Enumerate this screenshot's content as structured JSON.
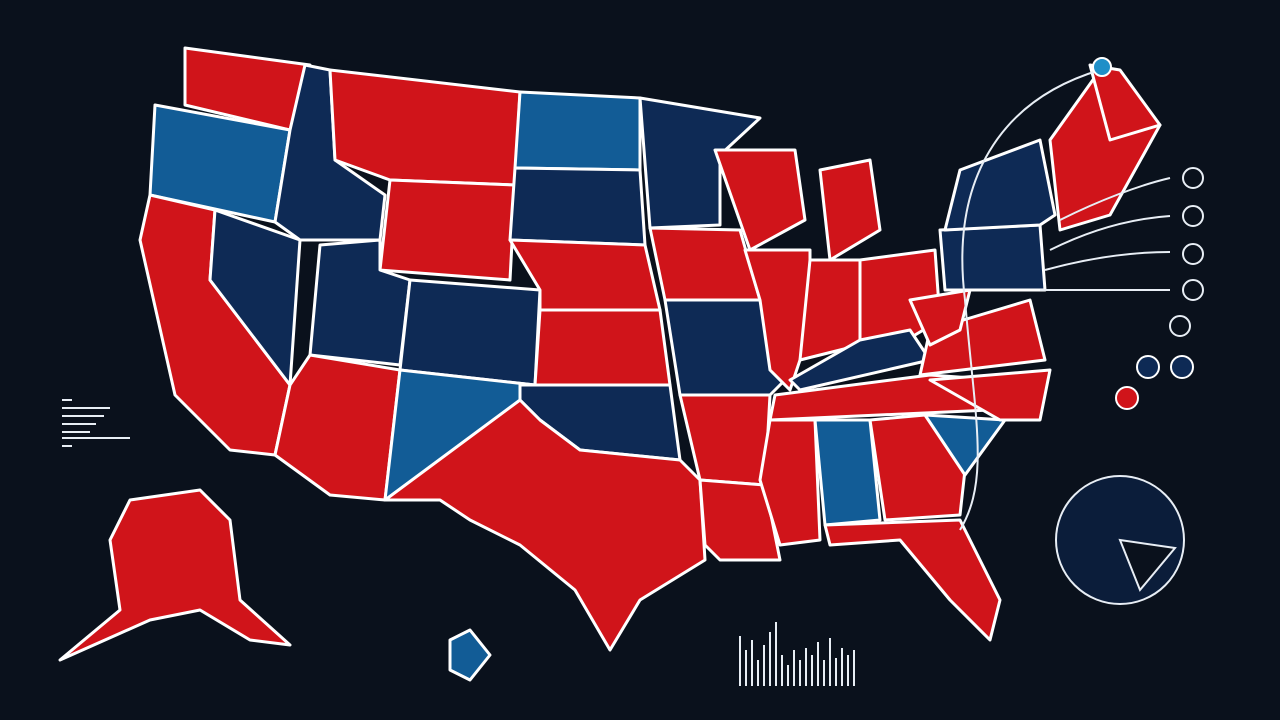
{
  "background": "#0a111c",
  "outline": "#ffffff",
  "regions": [
    "#d0141a",
    "#125c96",
    "#d0141a",
    "#0e2a55",
    "#0e2a55",
    "#d0141a",
    "#d0141a",
    "#0e2a55",
    "#0e2a55",
    "#d0141a",
    "#125c96",
    "#125c96",
    "#0e2a55",
    "#d0141a",
    "#d0141a",
    "#0e2a55",
    "#d0141a",
    "#0e2a55",
    "#d0141a",
    "#0e2a55",
    "#d0141a",
    "#d0141a",
    "#d0141a",
    "#d0141a",
    "#d0141a",
    "#d0141a",
    "#d0141a",
    "#0e2a55",
    "#d0141a",
    "#d0141a",
    "#125c96",
    "#d0141a",
    "#d0141a",
    "#125c96",
    "#d0141a",
    "#d0141a",
    "#d0141a",
    "#0e2a55",
    "#0e2a55",
    "#d0141a",
    "#d0141a",
    "#d0141a",
    "#125c96"
  ]
}
